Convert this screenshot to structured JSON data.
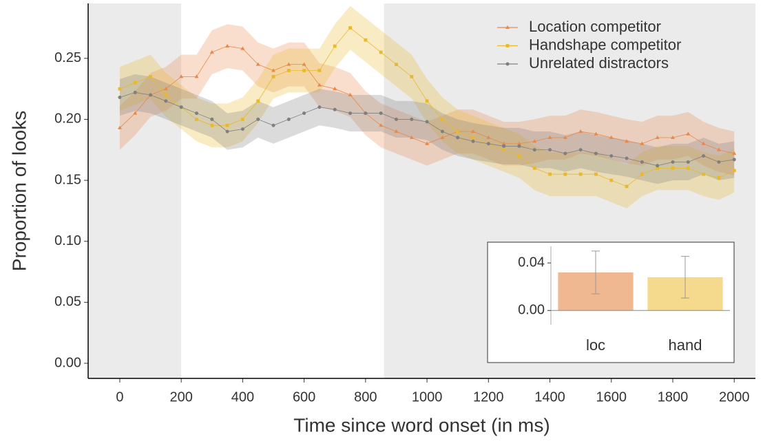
{
  "chart_data": [
    {
      "type": "line",
      "x_label": "Time since word onset (in ms)",
      "y_label": "Proportion of looks",
      "x": [
        0,
        50,
        100,
        150,
        200,
        250,
        300,
        350,
        400,
        450,
        500,
        550,
        600,
        650,
        700,
        750,
        800,
        850,
        900,
        950,
        1000,
        1050,
        1100,
        1150,
        1200,
        1250,
        1300,
        1350,
        1400,
        1450,
        1500,
        1550,
        1600,
        1650,
        1700,
        1750,
        1800,
        1850,
        1900,
        1950,
        2000
      ],
      "xlim": [
        -103,
        2069
      ],
      "ylim": [
        -0.0124,
        0.295
      ],
      "xticks": [
        0,
        200,
        400,
        600,
        800,
        1000,
        1200,
        1400,
        1600,
        1800,
        2000
      ],
      "yticks": [
        {
          "value": 0,
          "label": "0.00"
        },
        0.05,
        {
          "value": 0.1,
          "label": "0.10"
        },
        0.15,
        {
          "value": 0.2,
          "label": "0.20"
        },
        0.25
      ],
      "window": [
        200,
        860
      ],
      "legend": "top-right",
      "series": [
        {
          "name": "Location competitor",
          "color": "#e8894a",
          "marker": "triangle",
          "error": 0.018,
          "values": [
            0.193,
            0.205,
            0.22,
            0.225,
            0.235,
            0.235,
            0.255,
            0.26,
            0.258,
            0.245,
            0.24,
            0.245,
            0.245,
            0.228,
            0.225,
            0.22,
            0.205,
            0.195,
            0.19,
            0.185,
            0.18,
            0.185,
            0.19,
            0.19,
            0.185,
            0.18,
            0.18,
            0.182,
            0.185,
            0.185,
            0.19,
            0.188,
            0.185,
            0.182,
            0.18,
            0.185,
            0.185,
            0.188,
            0.18,
            0.175,
            0.172
          ]
        },
        {
          "name": "Handshape competitor",
          "color": "#e8b92e",
          "marker": "square",
          "error": 0.018,
          "values": [
            0.225,
            0.23,
            0.235,
            0.22,
            0.21,
            0.2,
            0.195,
            0.195,
            0.2,
            0.215,
            0.235,
            0.24,
            0.24,
            0.24,
            0.26,
            0.275,
            0.265,
            0.255,
            0.245,
            0.235,
            0.215,
            0.2,
            0.19,
            0.185,
            0.18,
            0.175,
            0.17,
            0.16,
            0.155,
            0.155,
            0.155,
            0.155,
            0.15,
            0.145,
            0.155,
            0.16,
            0.16,
            0.16,
            0.155,
            0.152,
            0.158
          ]
        },
        {
          "name": "Unrelated distractors",
          "color": "#7f7f7f",
          "marker": "circle",
          "error": 0.015,
          "values": [
            0.218,
            0.222,
            0.22,
            0.215,
            0.21,
            0.205,
            0.2,
            0.19,
            0.192,
            0.2,
            0.195,
            0.2,
            0.205,
            0.21,
            0.208,
            0.205,
            0.205,
            0.205,
            0.2,
            0.2,
            0.198,
            0.19,
            0.185,
            0.182,
            0.18,
            0.178,
            0.178,
            0.175,
            0.175,
            0.172,
            0.175,
            0.172,
            0.17,
            0.168,
            0.165,
            0.162,
            0.165,
            0.165,
            0.17,
            0.165,
            0.167
          ]
        }
      ]
    },
    {
      "type": "bar",
      "categories": [
        "loc",
        "hand"
      ],
      "values": [
        0.032,
        0.028
      ],
      "errors": [
        0.018,
        0.0175
      ],
      "colors": [
        "#f0b891",
        "#f5d98c"
      ],
      "ylim": [
        -0.012,
        0.054
      ],
      "yticks": [
        {
          "value": 0,
          "label": "0.00"
        },
        0.04
      ]
    }
  ]
}
